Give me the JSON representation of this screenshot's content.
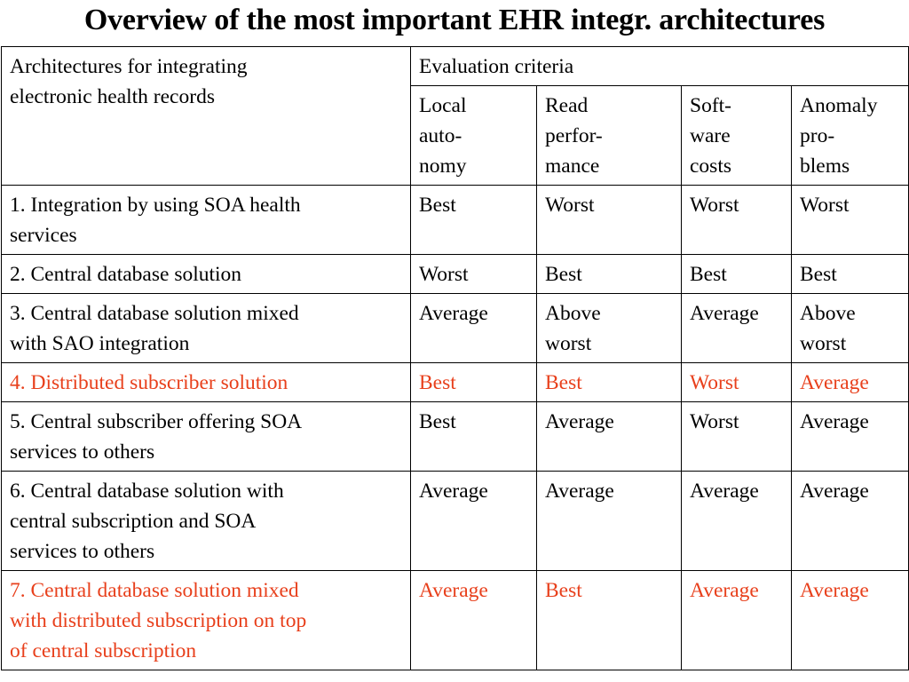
{
  "title": "Overview of the most important EHR integr. architectures",
  "table": {
    "header": {
      "arch_label": [
        "Architectures for integrating",
        "electronic health records"
      ],
      "group_label": "Evaluation criteria",
      "criteria": [
        [
          "Local",
          "auto-",
          "nomy"
        ],
        [
          "Read",
          "perfor-",
          "mance"
        ],
        [
          "Soft-",
          "ware",
          "costs"
        ],
        [
          "Anomaly",
          "pro-",
          "blems"
        ]
      ]
    },
    "rows": [
      {
        "name": [
          "1. Integration by using SOA health",
          "services"
        ],
        "values": [
          [
            "Best"
          ],
          [
            "Worst"
          ],
          [
            "Worst"
          ],
          [
            "Worst"
          ]
        ],
        "highlight": false
      },
      {
        "name": [
          "2. Central database solution"
        ],
        "values": [
          [
            "Worst"
          ],
          [
            "Best"
          ],
          [
            "Best"
          ],
          [
            "Best"
          ]
        ],
        "highlight": false
      },
      {
        "name": [
          "3. Central database solution mixed",
          "with SAO  integration"
        ],
        "values": [
          [
            "Average"
          ],
          [
            "Above",
            "worst"
          ],
          [
            "Average"
          ],
          [
            "Above",
            "worst"
          ]
        ],
        "highlight": false
      },
      {
        "name": [
          "4. Distributed subscriber solution"
        ],
        "values": [
          [
            "Best"
          ],
          [
            "Best"
          ],
          [
            "Worst"
          ],
          [
            "Average"
          ]
        ],
        "highlight": true
      },
      {
        "name": [
          "5. Central subscriber offering SOA",
          "services to others"
        ],
        "values": [
          [
            "Best"
          ],
          [
            "Average"
          ],
          [
            "Worst"
          ],
          [
            "Average"
          ]
        ],
        "highlight": false
      },
      {
        "name": [
          "6. Central database solution with",
          "central subscription and SOA",
          "services to others"
        ],
        "values": [
          [
            "Average"
          ],
          [
            "Average"
          ],
          [
            "Average"
          ],
          [
            "Average"
          ]
        ],
        "highlight": false
      },
      {
        "name": [
          "7. Central database solution mixed",
          "with distributed subscription on top",
          "of central subscription"
        ],
        "values": [
          [
            "Average"
          ],
          [
            "Best"
          ],
          [
            "Average"
          ],
          [
            "Average"
          ]
        ],
        "highlight": true
      }
    ]
  },
  "colors": {
    "highlight": "#e8401c",
    "text": "#000000",
    "border": "#000000"
  }
}
